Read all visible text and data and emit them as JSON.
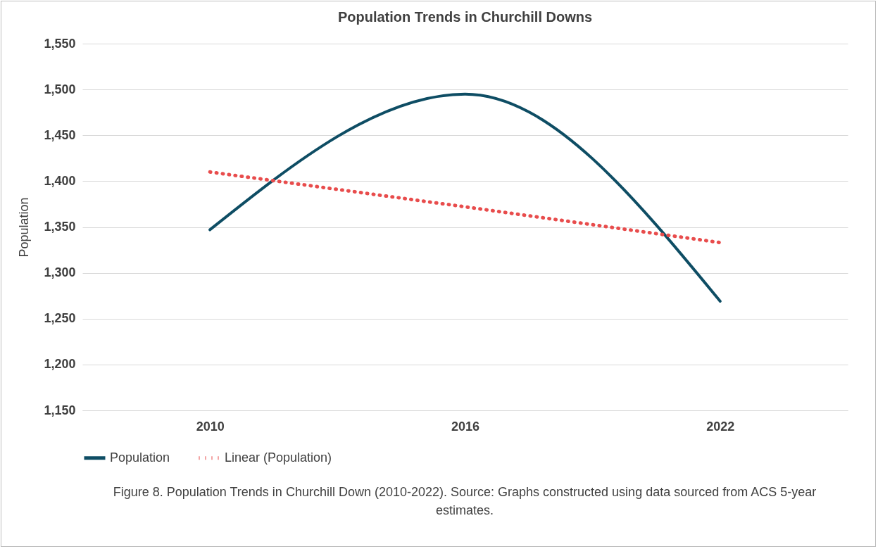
{
  "chart_data": {
    "type": "line",
    "title": "Population Trends in Churchill Downs",
    "ylabel": "Population",
    "categories": [
      "2010",
      "2016",
      "2022"
    ],
    "series": [
      {
        "name": "Population",
        "type": "line",
        "color": "#0e4d64",
        "line_style": "solid",
        "values": [
          1347,
          1495,
          1269
        ]
      },
      {
        "name": "Linear (Population)",
        "type": "line",
        "color": "#e84c4c",
        "line_style": "dotted",
        "values": [
          1410,
          1372,
          1333
        ]
      }
    ],
    "ylim": [
      1150,
      1550
    ],
    "yticks": [
      {
        "value": 1150,
        "label": "1,150"
      },
      {
        "value": 1200,
        "label": "1,200"
      },
      {
        "value": 1250,
        "label": "1,250"
      },
      {
        "value": 1300,
        "label": "1,300"
      },
      {
        "value": 1350,
        "label": "1,350"
      },
      {
        "value": 1400,
        "label": "1,400"
      },
      {
        "value": 1450,
        "label": "1,450"
      },
      {
        "value": 1500,
        "label": "1,500"
      },
      {
        "value": 1550,
        "label": "1,550"
      }
    ],
    "grid": "y",
    "legend": "bottom",
    "annotations": [
      "Figure 8. Population Trends in Churchill Down (2010-2022). Source: Graphs constructed using data sourced from ACS 5-year estimates."
    ]
  }
}
